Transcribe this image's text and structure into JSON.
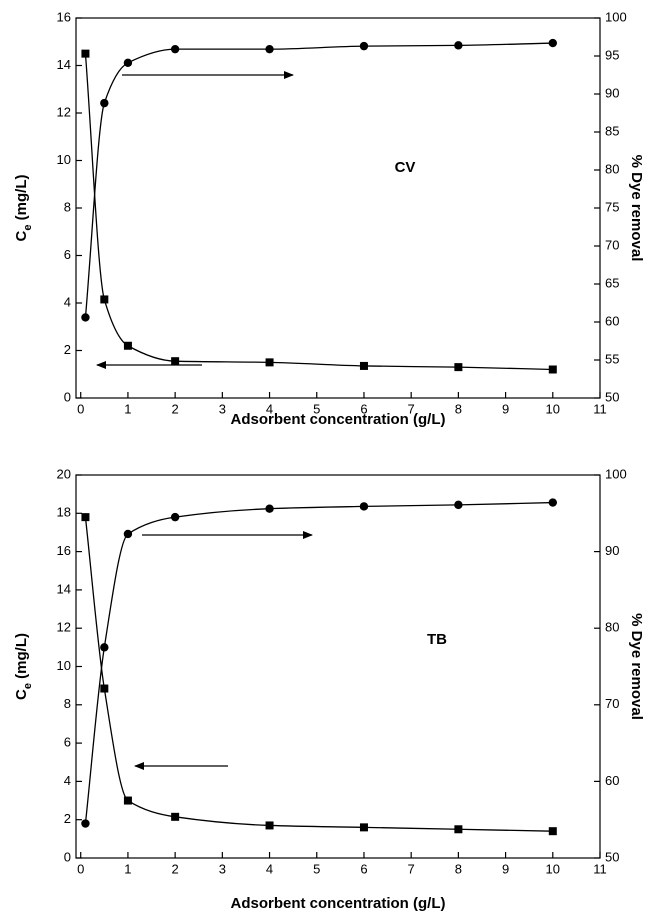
{
  "chart_data": [
    {
      "type": "line",
      "xlabel": "Adsorbent concentration (g/L)",
      "ylabel": [
        "C",
        "e",
        " (mg/L)"
      ],
      "y2label": "% Dye removal",
      "annotation": "CV",
      "x": [
        0.1,
        0.5,
        1,
        2,
        4,
        6,
        8,
        10
      ],
      "xlim": [
        -0.1,
        11
      ],
      "xticks": [
        0,
        1,
        2,
        3,
        4,
        5,
        6,
        7,
        8,
        9,
        10,
        11
      ],
      "ylim": [
        0,
        16
      ],
      "yticks": [
        0,
        2,
        4,
        6,
        8,
        10,
        12,
        14,
        16
      ],
      "y2lim": [
        50,
        100
      ],
      "y2ticks": [
        50,
        55,
        60,
        65,
        70,
        75,
        80,
        85,
        90,
        95,
        100
      ],
      "series": [
        {
          "color": "#000000",
          "marker": "square",
          "values": [
            14.5,
            4.15,
            2.2,
            1.55,
            1.5,
            1.35,
            1.3,
            1.2
          ]
        },
        {
          "color": "#000000",
          "marker": "circle",
          "axis": "y2",
          "values": [
            60.6,
            88.8,
            94.1,
            95.9,
            95.9,
            96.3,
            96.4,
            96.7
          ]
        }
      ]
    },
    {
      "type": "line",
      "xlabel": "Adsorbent concentration (g/L)",
      "ylabel": [
        "C",
        "e",
        " (mg/L)"
      ],
      "y2label": "% Dye removal",
      "annotation": "TB",
      "x": [
        0.1,
        0.5,
        1,
        2,
        4,
        6,
        8,
        10
      ],
      "xlim": [
        -0.1,
        11
      ],
      "xticks": [
        0,
        1,
        2,
        3,
        4,
        5,
        6,
        7,
        8,
        9,
        10,
        11
      ],
      "ylim": [
        0,
        20
      ],
      "yticks": [
        0,
        2,
        4,
        6,
        8,
        10,
        12,
        14,
        16,
        18,
        20
      ],
      "y2lim": [
        50,
        100
      ],
      "y2ticks": [
        50,
        60,
        70,
        80,
        90,
        100
      ],
      "series": [
        {
          "color": "#000000",
          "marker": "square",
          "values": [
            17.8,
            8.85,
            3.0,
            2.15,
            1.7,
            1.6,
            1.5,
            1.4
          ]
        },
        {
          "color": "#000000",
          "marker": "circle",
          "axis": "y2",
          "values": [
            54.5,
            77.5,
            92.3,
            94.5,
            95.6,
            95.9,
            96.1,
            96.4
          ]
        }
      ]
    }
  ]
}
